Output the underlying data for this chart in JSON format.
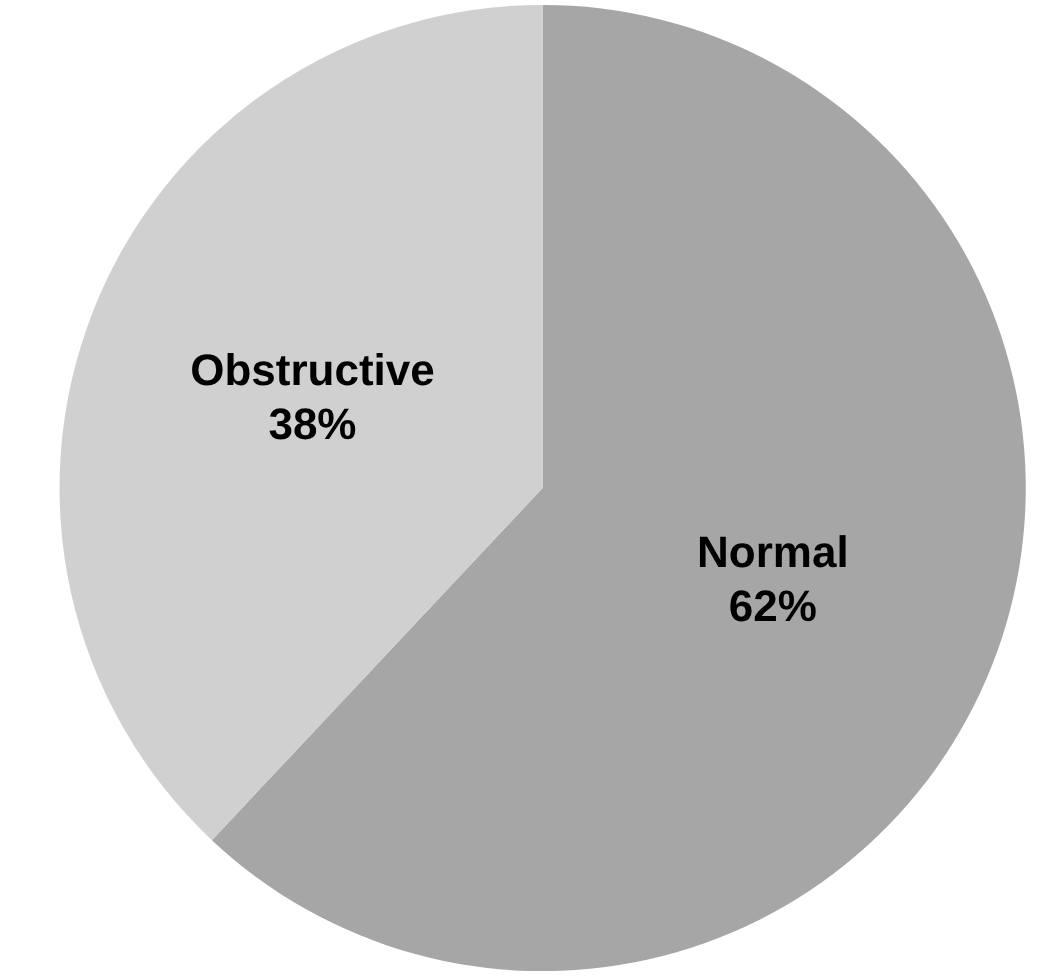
{
  "chart_data": {
    "type": "pie",
    "categories": [
      "Normal",
      "Obstructive"
    ],
    "values": [
      62,
      38
    ],
    "colors": [
      "#a6a6a6",
      "#d0d0d0"
    ],
    "value_labels": [
      "62%",
      "38%"
    ],
    "legend": false
  }
}
